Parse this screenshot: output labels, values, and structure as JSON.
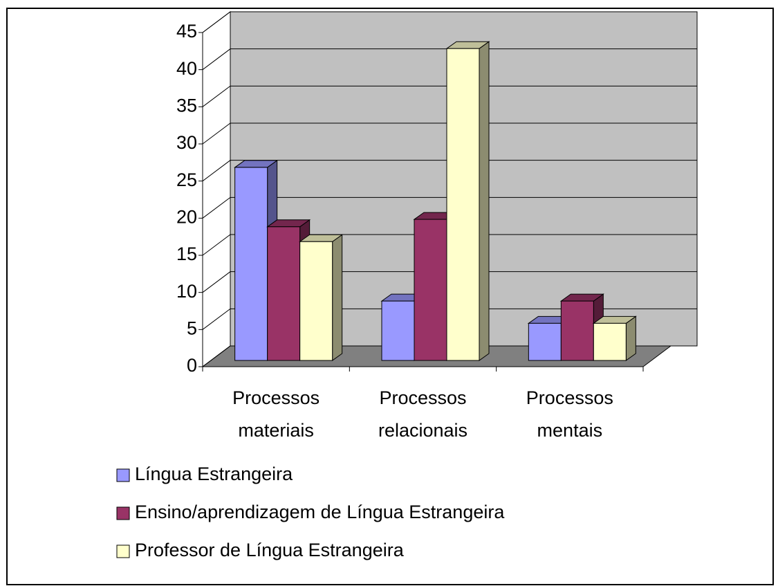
{
  "chart_data": {
    "type": "bar3d",
    "categories": [
      "Processos materiais",
      "Processos relacionais",
      "Processos mentais"
    ],
    "series": [
      {
        "name": "Língua Estrangeira",
        "color": "#9999ff",
        "values": [
          26,
          8,
          5
        ]
      },
      {
        "name": "Ensino/aprendizagem de Língua Estrangeira",
        "color": "#993366",
        "values": [
          18,
          19,
          8
        ]
      },
      {
        "name": "Professor de Língua Estrangeira",
        "color": "#ffffcc",
        "values": [
          16,
          42,
          5
        ]
      }
    ],
    "ylim": [
      0,
      45
    ],
    "yticks": [
      0,
      5,
      10,
      15,
      20,
      25,
      30,
      35,
      40,
      45
    ],
    "grid": true
  }
}
